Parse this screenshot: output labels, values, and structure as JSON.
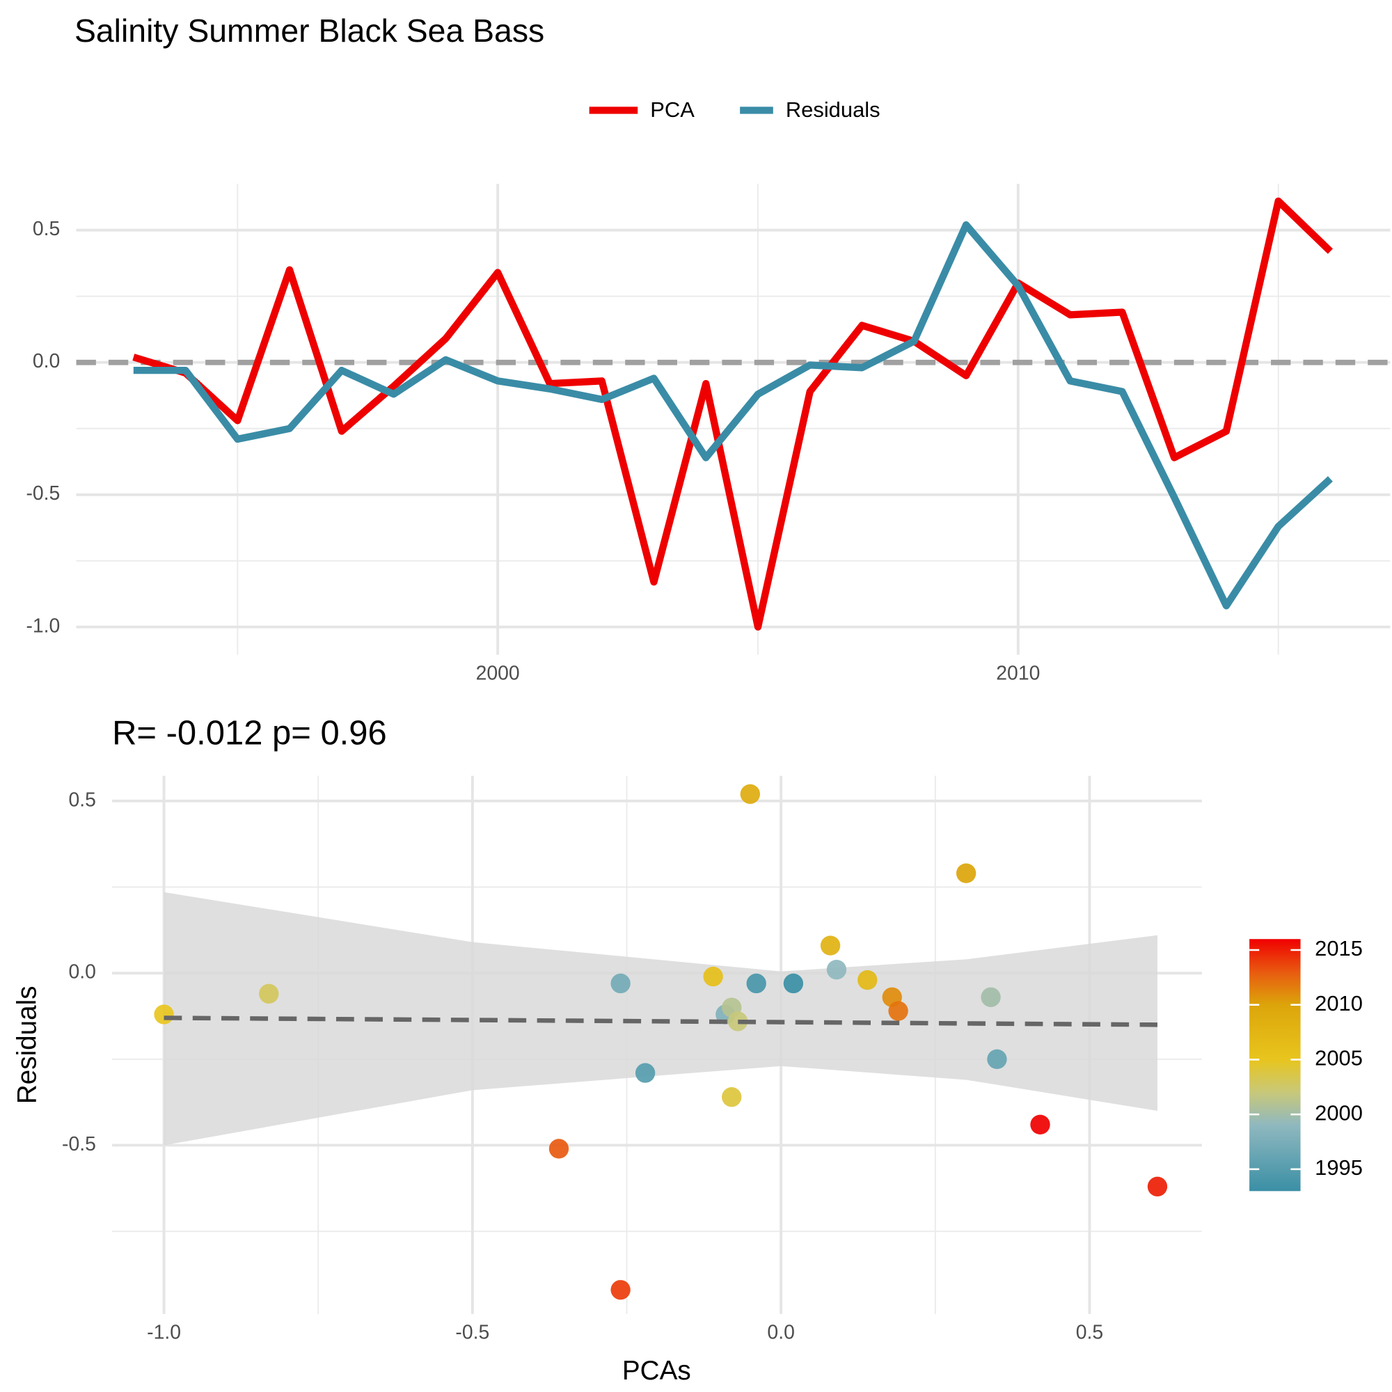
{
  "title": "Salinity Summer Black Sea Bass",
  "chart_data": [
    {
      "type": "line",
      "x": [
        1993,
        1994,
        1995,
        1996,
        1997,
        1998,
        1999,
        2000,
        2001,
        2002,
        2003,
        2004,
        2005,
        2006,
        2007,
        2008,
        2009,
        2010,
        2011,
        2012,
        2013,
        2014,
        2015,
        2016
      ],
      "series": [
        {
          "name": "PCA",
          "color": "#ee0000",
          "values": [
            0.02,
            -0.04,
            -0.22,
            0.35,
            -0.26,
            -0.09,
            0.09,
            0.34,
            -0.08,
            -0.07,
            -0.83,
            -0.08,
            -1.0,
            -0.11,
            0.14,
            0.08,
            -0.05,
            0.3,
            0.18,
            0.19,
            -0.36,
            -0.26,
            0.61,
            0.42
          ]
        },
        {
          "name": "Residuals",
          "color": "#3a8ca6",
          "values": [
            -0.03,
            -0.03,
            -0.29,
            -0.25,
            -0.03,
            -0.12,
            0.01,
            -0.07,
            -0.1,
            -0.14,
            -0.06,
            -0.36,
            -0.12,
            -0.01,
            -0.02,
            0.08,
            0.52,
            0.29,
            -0.07,
            -0.11,
            -0.51,
            -0.92,
            -0.62,
            -0.44
          ]
        }
      ],
      "xlim": [
        1991.9,
        2017.15
      ],
      "xticks": [
        2000,
        2010
      ],
      "xminor": [
        1995,
        2005,
        2015
      ],
      "ylim": [
        -1.105,
        0.675
      ],
      "yticks": [
        0.5,
        {
          "value": 0,
          "label": "0.0"
        },
        {
          "value": -0.5,
          "label": "-0.5"
        },
        {
          "value": -1,
          "label": "-1.0"
        }
      ],
      "yminor": [
        0.25,
        -0.25,
        -0.75
      ],
      "hline": 0,
      "grid": true,
      "legend": "top"
    },
    {
      "type": "scatter",
      "subtitle": "R= -0.012  p= 0.96",
      "xlabel": "PCAs",
      "ylabel": "Residuals",
      "x": [
        0.02,
        -0.04,
        -0.22,
        0.35,
        -0.26,
        -0.09,
        0.09,
        0.34,
        -0.08,
        -0.07,
        -0.83,
        -0.08,
        -1.0,
        -0.11,
        0.14,
        0.08,
        -0.05,
        0.3,
        0.18,
        0.19,
        -0.36,
        -0.26,
        0.61,
        0.42
      ],
      "values": [
        -0.03,
        -0.03,
        -0.29,
        -0.25,
        -0.03,
        -0.12,
        0.01,
        -0.07,
        -0.1,
        -0.14,
        -0.06,
        -0.36,
        -0.12,
        -0.01,
        -0.02,
        0.08,
        0.52,
        0.29,
        -0.07,
        -0.11,
        -0.51,
        -0.92,
        -0.62,
        -0.44
      ],
      "color_values": [
        1993,
        1994,
        1995,
        1996,
        1997,
        1998,
        1999,
        2000,
        2001,
        2002,
        2003,
        2004,
        2005,
        2006,
        2007,
        2008,
        2009,
        2010,
        2011,
        2012,
        2013,
        2014,
        2015,
        2016
      ],
      "xlim": [
        -1.084,
        0.682
      ],
      "xticks": [
        {
          "value": -1,
          "label": "-1.0"
        },
        {
          "value": -0.5,
          "label": "-0.5"
        },
        {
          "value": 0,
          "label": "0.0"
        },
        0.5
      ],
      "xminor": [
        -0.75,
        -0.25,
        0.25
      ],
      "ylim": [
        -0.99,
        0.573
      ],
      "yticks": [
        0.5,
        {
          "value": 0,
          "label": "0.0"
        },
        {
          "value": -0.5,
          "label": "-0.5"
        }
      ],
      "yminor": [
        0.25,
        -0.25,
        -0.75
      ],
      "fit": {
        "x": [
          -1,
          0.61
        ],
        "y": [
          -0.13,
          -0.15
        ]
      },
      "band": {
        "x": [
          -1,
          -0.5,
          0,
          0.3,
          0.61
        ],
        "upper": [
          0.235,
          0.09,
          0.005,
          0.04,
          0.11
        ],
        "lower": [
          -0.5,
          -0.34,
          -0.27,
          -0.31,
          -0.4
        ]
      },
      "colorbar": {
        "lim": [
          1993,
          2016
        ],
        "ticks": [
          1995,
          2000,
          2005,
          2010,
          2015
        ],
        "stops": [
          {
            "value": 1993,
            "color": "#3a8fa5"
          },
          {
            "value": 1999,
            "color": "#8fb8bf"
          },
          {
            "value": 2002,
            "color": "#c8c87a"
          },
          {
            "value": 2005,
            "color": "#e8c51e"
          },
          {
            "value": 2010,
            "color": "#dca50a"
          },
          {
            "value": 2013,
            "color": "#e85a10"
          },
          {
            "value": 2016,
            "color": "#f00000"
          }
        ]
      },
      "grid": true
    }
  ]
}
